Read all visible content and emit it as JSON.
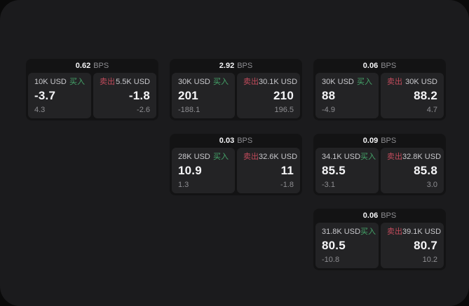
{
  "labels": {
    "buy": "买入",
    "sell": "卖出",
    "bps_unit": "BPS"
  },
  "colors": {
    "page_bg": "#0a0a0a",
    "window_bg": "#1b1b1d",
    "card_bg": "#131314",
    "panel_bg": "#232325",
    "buy_green": "#45a56a",
    "sell_red": "#c24b5c"
  },
  "cards": [
    {
      "bps": "0.62",
      "buy": {
        "amount": "10K USD",
        "price": "-3.7",
        "sub": "4.3"
      },
      "sell": {
        "amount": "5.5K USD",
        "price": "-1.8",
        "sub": "-2.6"
      }
    },
    {
      "bps": "2.92",
      "buy": {
        "amount": "30K USD",
        "price": "201",
        "sub": "-188.1"
      },
      "sell": {
        "amount": "30.1K USD",
        "price": "210",
        "sub": "196.5"
      }
    },
    {
      "bps": "0.03",
      "buy": {
        "amount": "28K USD",
        "price": "10.9",
        "sub": "1.3"
      },
      "sell": {
        "amount": "32.6K USD",
        "price": "11",
        "sub": "-1.8"
      }
    },
    {
      "bps": "0.06",
      "buy": {
        "amount": "30K USD",
        "price": "88",
        "sub": "-4.9"
      },
      "sell": {
        "amount": "30K USD",
        "price": "88.2",
        "sub": "4.7"
      }
    },
    {
      "bps": "0.09",
      "buy": {
        "amount": "34.1K USD",
        "price": "85.5",
        "sub": "-3.1"
      },
      "sell": {
        "amount": "32.8K USD",
        "price": "85.8",
        "sub": "3.0"
      }
    },
    {
      "bps": "0.06",
      "buy": {
        "amount": "31.8K USD",
        "price": "80.5",
        "sub": "-10.8"
      },
      "sell": {
        "amount": "39.1K USD",
        "price": "80.7",
        "sub": "10.2"
      }
    }
  ],
  "layout_columns": [
    [
      0
    ],
    [
      1,
      2
    ],
    [
      3,
      4,
      5
    ]
  ]
}
